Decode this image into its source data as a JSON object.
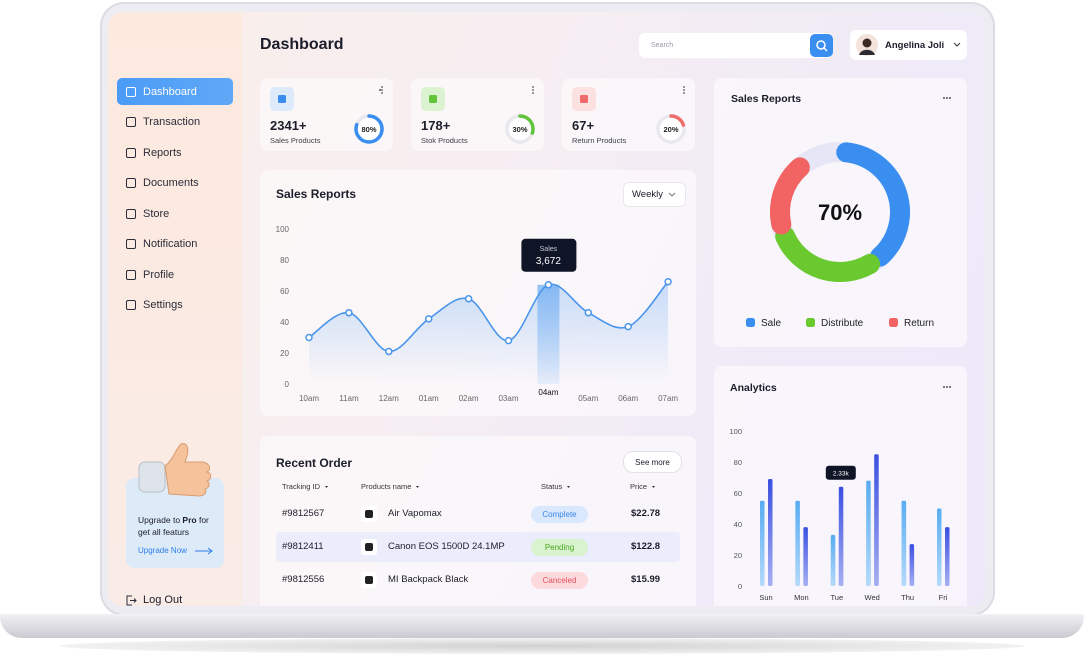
{
  "header": {
    "title": "Dashboard",
    "search_placeholder": "Search",
    "user_name": "Angelina Joli"
  },
  "sidebar": {
    "nav": [
      "Dashboard",
      "Transaction",
      "Reports",
      "Documents",
      "Store",
      "Notification",
      "Profile",
      "Settings"
    ],
    "promo": {
      "text_before": "Upgrade to ",
      "text_bold": "Pro",
      "text_after": " for get all featurs",
      "button": "Upgrade Now"
    },
    "logout": "Log Out"
  },
  "stats": [
    {
      "value": "2341+",
      "label": "Sales Products",
      "percent": 80,
      "percent_label": "80%",
      "color": "#3a8ef0"
    },
    {
      "value": "178+",
      "label": "Stok Products",
      "percent": 30,
      "percent_label": "30%",
      "color": "#62c43a"
    },
    {
      "value": "67+",
      "label": "Return Products",
      "percent": 20,
      "percent_label": "20%",
      "color": "#f06b6b"
    }
  ],
  "sales_chart": {
    "type": "line",
    "title": "Sales Reports",
    "filter": "Weekly",
    "categories": [
      "10am",
      "11am",
      "12am",
      "01am",
      "02am",
      "03am",
      "04am",
      "05am",
      "06am",
      "07am"
    ],
    "values": [
      30,
      46,
      21,
      42,
      55,
      28,
      64,
      46,
      37,
      66
    ],
    "ylim": [
      0,
      100
    ],
    "yticks": [
      0,
      20,
      40,
      60,
      80,
      100
    ],
    "color": "#4a95ec",
    "tooltip": {
      "label": "Sales",
      "value": "3,672"
    }
  },
  "recent_orders": {
    "title": "Recent Order",
    "action": "See more",
    "columns": [
      "Tracking ID",
      "Products name",
      "Status",
      "Price"
    ],
    "rows": [
      [
        "#9812567",
        "Air Vapomax",
        "Complete",
        "$22.78"
      ],
      [
        "#9812411",
        "Canon EOS 1500D 24.1MP",
        "Pending",
        "$122.8"
      ],
      [
        "#9812556",
        "MI Backpack Black",
        "Canceled",
        "$15.99"
      ]
    ]
  },
  "sales_donut": {
    "type": "donut",
    "title": "Sales Reports",
    "center_label": "70%",
    "series": [
      {
        "name": "Sale",
        "color": "#3a8ef0",
        "value": 40
      },
      {
        "name": "Distribute",
        "color": "#6ac92e",
        "value": 30
      },
      {
        "name": "Return",
        "color": "#f26464",
        "value": 20
      }
    ]
  },
  "analytics": {
    "type": "bar",
    "title": "Analytics",
    "categories": [
      "Sun",
      "Mon",
      "Tue",
      "Wed",
      "Thu",
      "Fri"
    ],
    "series": [
      {
        "color": "#58acf2",
        "values": [
          55,
          55,
          33,
          68,
          55,
          50
        ]
      },
      {
        "color": "#3b4fe0",
        "values": [
          69,
          38,
          64,
          85,
          27,
          38
        ]
      }
    ],
    "ylim": [
      0,
      100
    ],
    "yticks": [
      0,
      20,
      40,
      60,
      80,
      100
    ],
    "tooltip": "2.33k"
  }
}
